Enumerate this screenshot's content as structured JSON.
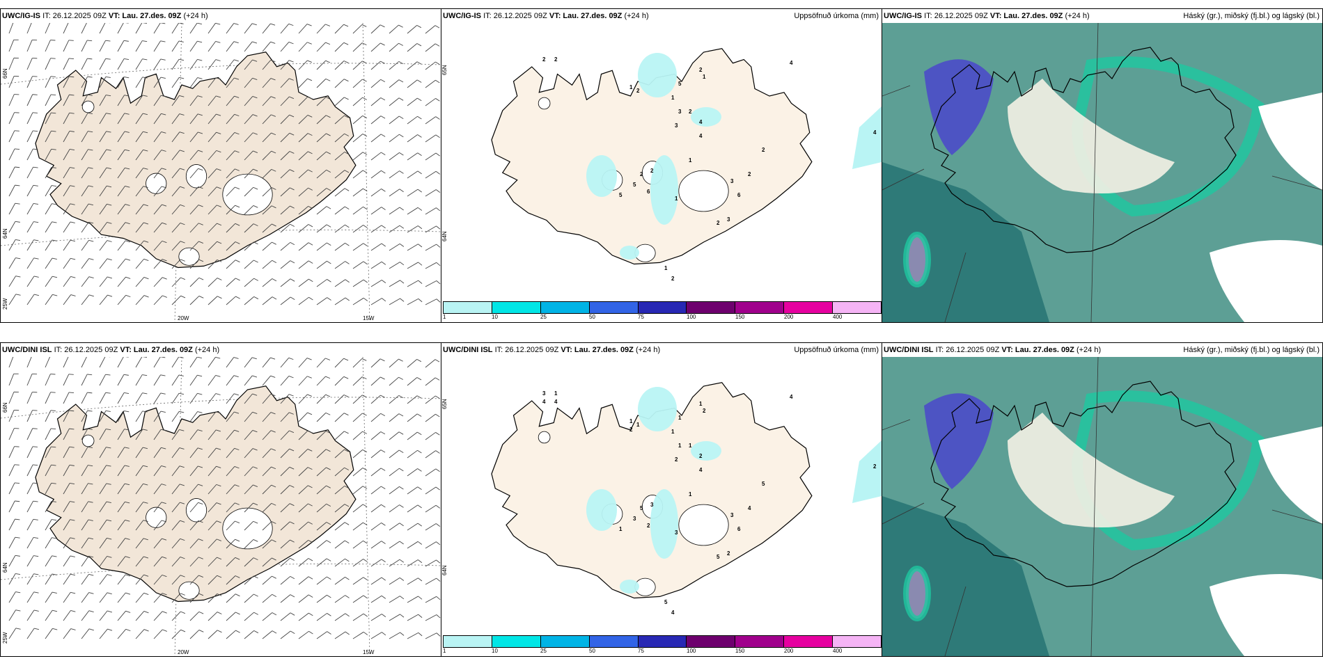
{
  "rows": [
    {
      "model": "UWC/IG-IS",
      "it_label": "IT: 26.12.2025 09Z",
      "vt_label": "VT: Lau. 27.des. 09Z",
      "lead": "(+24 h)"
    },
    {
      "model": "UWC/DINI ISL",
      "it_label": "IT: 26.12.2025 09Z",
      "vt_label": "VT: Lau. 27.des. 09Z",
      "lead": "(+24 h)"
    }
  ],
  "wind_panel": {
    "lat_labels": [
      "66N",
      "64N"
    ],
    "lon_labels": [
      "25W",
      "20W",
      "15W"
    ]
  },
  "precip_panel": {
    "title": "Uppsöfnuð úrkoma (mm)",
    "lat_labels": [
      "65N",
      "64N"
    ],
    "colorbar": {
      "ticks": [
        "1",
        "10",
        "25",
        "50",
        "75",
        "100",
        "150",
        "200",
        "400"
      ],
      "colors": [
        "#b9f4f4",
        "#00e6e6",
        "#00b4e6",
        "#3264e6",
        "#2828b4",
        "#6e006e",
        "#a0008c",
        "#e600a0",
        "#f5b4f5"
      ]
    },
    "labels_top": [
      "2",
      "2",
      "1",
      "2",
      "5",
      "2",
      "1",
      "1",
      "3",
      "2",
      "3",
      "4",
      "4",
      "2",
      "2",
      "2",
      "5",
      "6",
      "5",
      "1",
      "1",
      "3",
      "6",
      "2",
      "3",
      "2",
      "1",
      "4",
      "4",
      "3",
      "2"
    ],
    "labels_bottom": [
      "3",
      "1",
      "1",
      "1",
      "1",
      "1",
      "2",
      "1",
      "1",
      "1",
      "2",
      "2",
      "4",
      "5",
      "5",
      "3",
      "3",
      "2",
      "1",
      "3",
      "1",
      "3",
      "6",
      "5",
      "2",
      "4",
      "5",
      "4",
      "2",
      "2",
      "4",
      "4",
      "4",
      "2"
    ]
  },
  "cloud_panel": {
    "title": "Háský (gr.), miðský (fj.bl.) og lágský (bl.)"
  },
  "colors": {
    "land": "#f2e6d8",
    "land_light": "#fbf2e6",
    "precip": "#b9f4f4",
    "cloud_high": "#2e7a78",
    "cloud_mid": "#5d9f95",
    "cloud_edge": "#1ec8a0",
    "cloud_mid_blue": "#4b4bc8"
  }
}
